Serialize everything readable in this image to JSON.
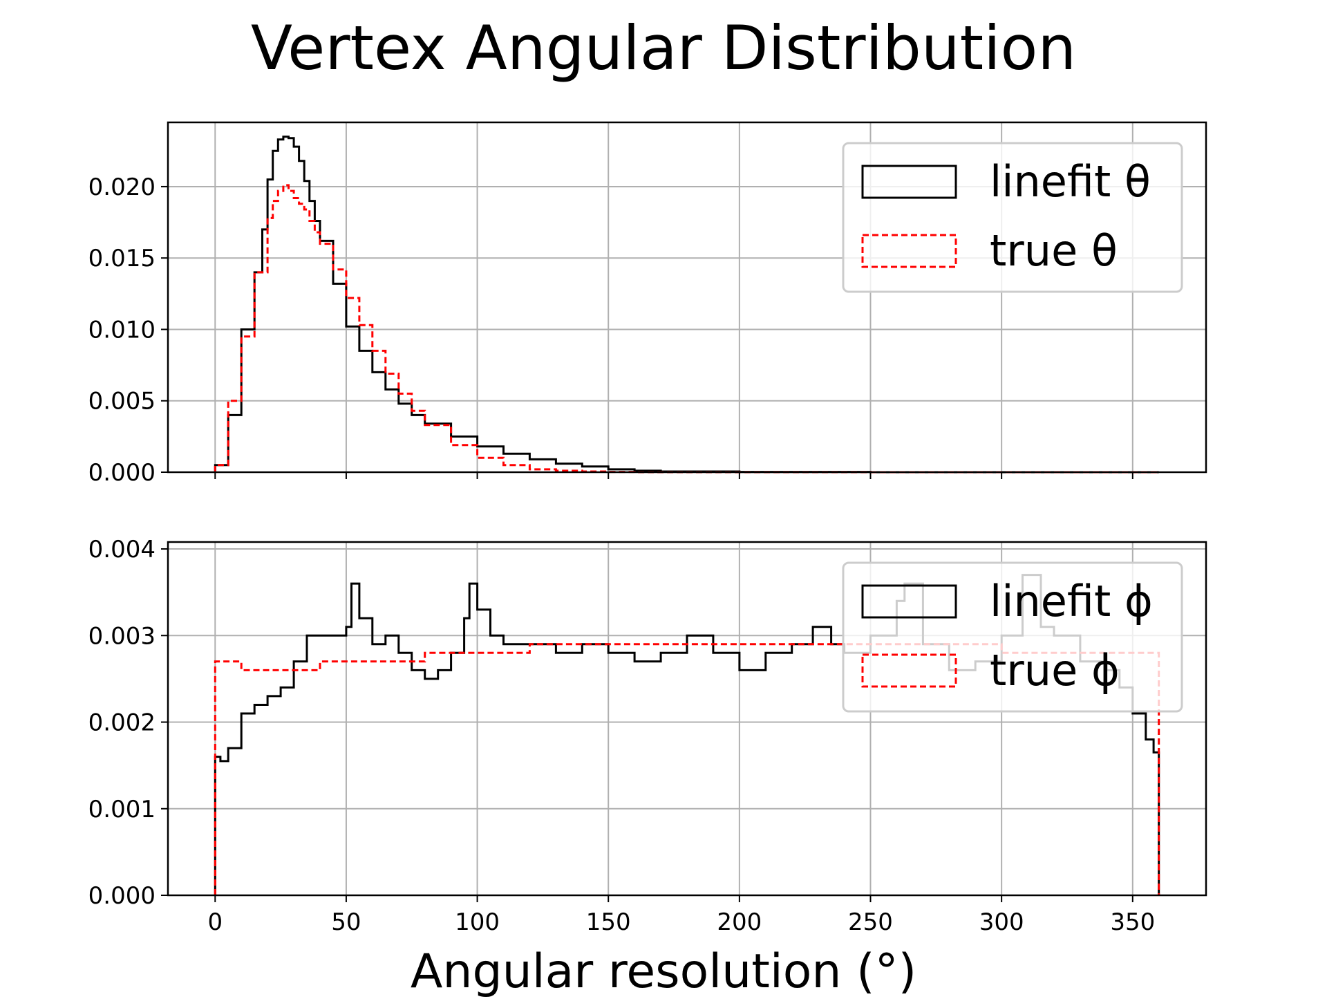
{
  "figure": {
    "title": "Vertex Angular Distribution",
    "xlabel": "Angular resolution (°)"
  },
  "chart_data": [
    {
      "type": "area",
      "panel": "top",
      "xlim": [
        -18,
        378
      ],
      "ylim": [
        0,
        0.0245
      ],
      "xticks": [
        0,
        50,
        100,
        150,
        200,
        250,
        300,
        350
      ],
      "yticks": [
        0,
        0.005,
        0.01,
        0.015,
        0.02
      ],
      "ytick_labels": [
        "0.000",
        "0.005",
        "0.010",
        "0.015",
        "0.020"
      ],
      "xtick_labels": [],
      "grid": true,
      "legend_position": "top-right",
      "series": [
        {
          "name": "linefit θ",
          "color": "#000000",
          "linestyle": "solid",
          "x": [
            0,
            5,
            10,
            15,
            18,
            20,
            22,
            24,
            26,
            28,
            30,
            32,
            34,
            36,
            38,
            40,
            45,
            50,
            55,
            60,
            65,
            70,
            75,
            80,
            90,
            100,
            110,
            120,
            130,
            140,
            150,
            160,
            170,
            200,
            250,
            300,
            360
          ],
          "values": [
            0.0005,
            0.004,
            0.01,
            0.014,
            0.017,
            0.0205,
            0.0225,
            0.0233,
            0.0235,
            0.0234,
            0.0228,
            0.0218,
            0.0204,
            0.019,
            0.0176,
            0.0162,
            0.0132,
            0.0102,
            0.0085,
            0.007,
            0.0058,
            0.0048,
            0.004,
            0.0034,
            0.0025,
            0.0018,
            0.0013,
            0.0009,
            0.0006,
            0.0004,
            0.0002,
            0.0001,
            5e-05,
            2e-05,
            0.0,
            0.0,
            0.0
          ]
        },
        {
          "name": "true θ",
          "color": "#ff0000",
          "linestyle": "dashed",
          "x": [
            0,
            5,
            10,
            15,
            20,
            22,
            24,
            26,
            28,
            30,
            32,
            34,
            36,
            38,
            40,
            45,
            50,
            55,
            60,
            65,
            70,
            75,
            80,
            90,
            100,
            110,
            120,
            130,
            140,
            150,
            160,
            170,
            200,
            250,
            300,
            360
          ],
          "values": [
            0.0005,
            0.005,
            0.0095,
            0.014,
            0.0178,
            0.019,
            0.0197,
            0.0201,
            0.0197,
            0.0192,
            0.0188,
            0.0184,
            0.0176,
            0.0168,
            0.016,
            0.0142,
            0.0122,
            0.0103,
            0.0085,
            0.0069,
            0.0055,
            0.0043,
            0.0033,
            0.0019,
            0.001,
            0.0005,
            0.0002,
            0.0001,
            5e-05,
            2e-05,
            0.0,
            0.0,
            0.0,
            0.0,
            0.0,
            0.0
          ]
        }
      ]
    },
    {
      "type": "area",
      "panel": "bottom",
      "xlim": [
        -18,
        378
      ],
      "ylim": [
        0,
        0.00408
      ],
      "xticks": [
        0,
        50,
        100,
        150,
        200,
        250,
        300,
        350
      ],
      "xtick_labels": [
        "0",
        "50",
        "100",
        "150",
        "200",
        "250",
        "300",
        "350"
      ],
      "yticks": [
        0,
        0.001,
        0.002,
        0.003,
        0.004
      ],
      "ytick_labels": [
        "0.000",
        "0.001",
        "0.002",
        "0.003",
        "0.004"
      ],
      "grid": true,
      "legend_position": "top-right",
      "series": [
        {
          "name": "linefit ϕ",
          "color": "#000000",
          "linestyle": "solid",
          "x": [
            0,
            2,
            5,
            10,
            15,
            20,
            25,
            30,
            35,
            40,
            45,
            50,
            52,
            55,
            60,
            65,
            70,
            75,
            80,
            85,
            90,
            95,
            97,
            100,
            105,
            110,
            120,
            130,
            140,
            150,
            160,
            170,
            180,
            190,
            200,
            210,
            220,
            228,
            235,
            240,
            250,
            260,
            263,
            270,
            280,
            290,
            300,
            308,
            315,
            320,
            330,
            340,
            345,
            350,
            355,
            358,
            360
          ],
          "values": [
            0.0016,
            0.00155,
            0.0017,
            0.0021,
            0.0022,
            0.0023,
            0.0024,
            0.0027,
            0.003,
            0.003,
            0.003,
            0.0031,
            0.0036,
            0.0032,
            0.0029,
            0.003,
            0.0028,
            0.0026,
            0.0025,
            0.0026,
            0.0028,
            0.0032,
            0.0036,
            0.0033,
            0.003,
            0.0029,
            0.0029,
            0.0028,
            0.0029,
            0.0028,
            0.0027,
            0.0028,
            0.003,
            0.0028,
            0.0026,
            0.0028,
            0.0029,
            0.0031,
            0.0029,
            0.0028,
            0.003,
            0.0034,
            0.0036,
            0.0029,
            0.0026,
            0.0027,
            0.003,
            0.0037,
            0.0031,
            0.003,
            0.0027,
            0.0026,
            0.0024,
            0.0021,
            0.0018,
            0.00165,
            0.0
          ]
        },
        {
          "name": "true ϕ",
          "color": "#ff0000",
          "linestyle": "dashed",
          "x": [
            0,
            10,
            20,
            30,
            40,
            50,
            60,
            70,
            80,
            90,
            100,
            110,
            120,
            130,
            140,
            150,
            160,
            170,
            180,
            190,
            200,
            210,
            220,
            230,
            240,
            250,
            260,
            270,
            280,
            290,
            300,
            310,
            320,
            330,
            340,
            350,
            358,
            360
          ],
          "values": [
            0.0027,
            0.0026,
            0.0026,
            0.0026,
            0.0027,
            0.0027,
            0.0027,
            0.0027,
            0.0028,
            0.0028,
            0.0028,
            0.0028,
            0.0029,
            0.0029,
            0.0029,
            0.0029,
            0.0029,
            0.0029,
            0.0029,
            0.0029,
            0.0029,
            0.0029,
            0.0029,
            0.0029,
            0.0029,
            0.0029,
            0.0029,
            0.0029,
            0.0029,
            0.0029,
            0.0028,
            0.0028,
            0.0028,
            0.0028,
            0.0028,
            0.0028,
            0.0028,
            0.0
          ]
        }
      ]
    }
  ]
}
